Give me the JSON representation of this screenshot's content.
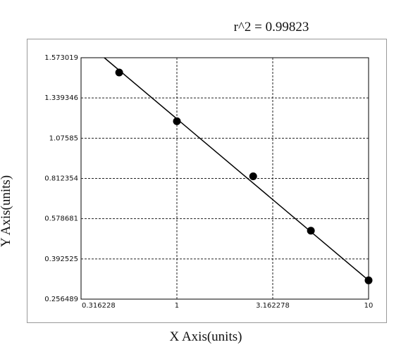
{
  "chart_data": {
    "type": "scatter",
    "annotation": "r^2  =  0.99823",
    "x_label": "X Axis(units)",
    "y_label": "Y Axis(units)",
    "x": [
      0.5,
      1,
      2.5,
      5,
      10
    ],
    "values": [
      1.487,
      1.187,
      0.826,
      0.523,
      0.32
    ],
    "color": "#000000",
    "fit": {
      "x": [
        0.418,
        10
      ],
      "values": [
        1.573019,
        0.32
      ]
    },
    "xscale": "log",
    "xlim": [
      0.316228,
      10
    ],
    "xticks": [
      0.316228,
      1,
      3.162278,
      10
    ],
    "ylim": [
      0.256489,
      1.573019
    ],
    "yticks": [
      0.256489,
      0.392525,
      0.578681,
      0.812354,
      1.07585,
      1.339346,
      1.573019
    ],
    "grid": true
  }
}
